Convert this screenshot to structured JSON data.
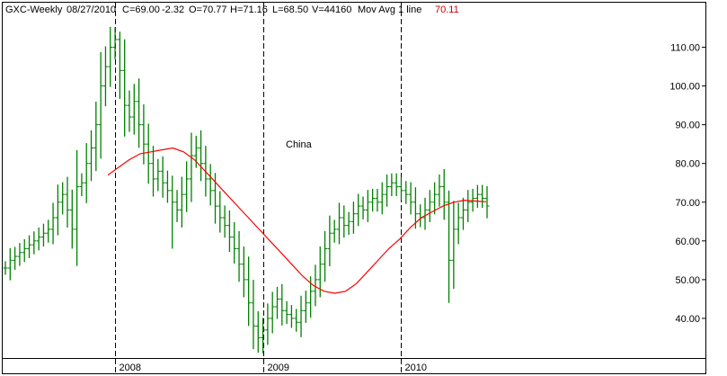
{
  "header": {
    "symbol": "GXC-Weekly",
    "date": "08/27/2010",
    "close": "C=69.00",
    "change": "-2.32",
    "open": "O=70.77",
    "high": "H=71.16",
    "low": "L=68.50",
    "volume": "V=44160",
    "indicator": "Mov Avg 1 line",
    "indicator_value": "70.11"
  },
  "annotation": "China",
  "colors": {
    "bars": "#008000",
    "moving_average": "#ff0000",
    "grid": "#000000",
    "header_value": "#cc0000"
  },
  "chart_data": {
    "type": "line",
    "title": "",
    "xlabel": "",
    "ylabel": "",
    "ylim": [
      30,
      115
    ],
    "x_ticks": [
      "2008",
      "2009",
      "2010"
    ],
    "y_ticks": [
      "40.00",
      "50.00",
      "60.00",
      "70.00",
      "80.00",
      "90.00",
      "100.00",
      "110.00"
    ],
    "grid": "vertical dashed at year boundaries",
    "y_axis_side": "right",
    "price_bars_weekly_close": [
      53,
      55,
      56,
      57,
      58,
      59,
      60,
      61,
      62,
      63,
      66,
      70,
      72,
      68,
      63,
      74,
      75,
      80,
      84,
      90,
      100,
      105,
      110,
      112,
      104,
      95,
      92,
      96,
      90,
      85,
      80,
      76,
      78,
      75,
      73,
      70,
      68,
      72,
      76,
      82,
      84,
      80,
      76,
      73,
      69,
      66,
      64,
      61,
      58,
      54,
      50,
      44,
      38,
      35,
      37,
      40,
      43,
      45,
      42,
      41,
      40,
      39,
      42,
      44,
      47,
      50,
      54,
      58,
      62,
      63,
      66,
      64,
      65,
      67,
      69,
      68,
      70,
      71,
      70,
      72,
      74,
      75,
      74,
      73,
      72,
      70,
      67,
      66,
      68,
      70,
      72,
      74,
      70,
      55,
      63,
      66,
      68,
      70,
      71,
      72,
      71,
      69
    ],
    "moving_average": [
      77,
      79,
      81,
      82.5,
      83,
      83.5,
      84,
      83,
      81,
      78,
      75,
      72,
      69,
      66,
      63,
      60,
      57,
      54,
      51,
      48.5,
      47,
      46.5,
      47,
      49,
      52,
      55,
      58,
      60.5,
      63.5,
      66,
      67.5,
      69,
      70,
      70.5,
      70.3,
      70.1
    ],
    "series": [
      {
        "name": "GXC-Weekly",
        "type": "ohlc"
      },
      {
        "name": "Mov Avg 1 line",
        "type": "line"
      }
    ]
  }
}
